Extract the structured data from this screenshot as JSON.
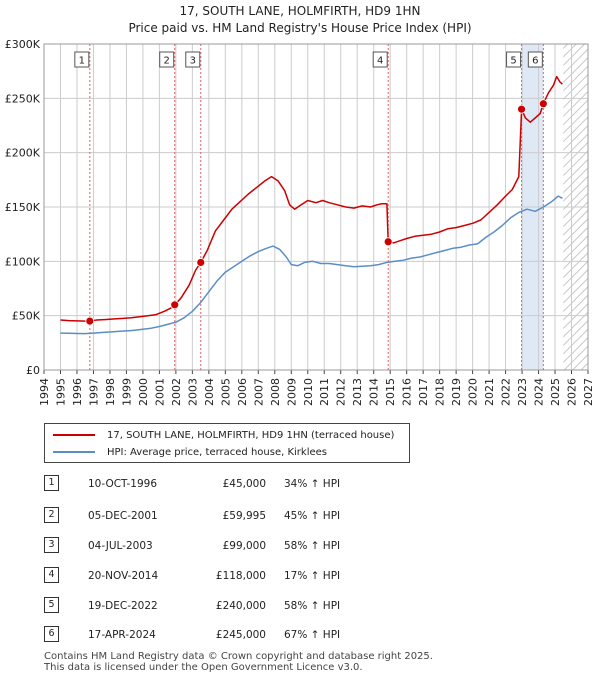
{
  "chart_data": {
    "type": "line",
    "title": "17, SOUTH LANE, HOLMFIRTH, HD9 1HN",
    "subtitle": "Price paid vs. HM Land Registry's House Price Index (HPI)",
    "xlabel": "",
    "ylabel": "",
    "xlim": [
      1994,
      2027
    ],
    "ylim": [
      0,
      300000
    ],
    "x_ticks": [
      "1994",
      "1995",
      "1996",
      "1997",
      "1998",
      "1999",
      "2000",
      "2001",
      "2002",
      "2003",
      "2004",
      "2005",
      "2006",
      "2007",
      "2008",
      "2009",
      "2010",
      "2011",
      "2012",
      "2013",
      "2014",
      "2015",
      "2016",
      "2017",
      "2018",
      "2019",
      "2020",
      "2021",
      "2022",
      "2023",
      "2024",
      "2025",
      "2026",
      "2027"
    ],
    "y_ticks": [
      {
        "value": 0,
        "label": "£0"
      },
      {
        "value": 50000,
        "label": "£50K"
      },
      {
        "value": 100000,
        "label": "£100K"
      },
      {
        "value": 150000,
        "label": "£150K"
      },
      {
        "value": 200000,
        "label": "£200K"
      },
      {
        "value": 250000,
        "label": "£250K"
      },
      {
        "value": 300000,
        "label": "£300K"
      }
    ],
    "grid": true,
    "data_end": 2025.5,
    "series": [
      {
        "name": "17, SOUTH LANE, HOLMFIRTH, HD9 1HN (terraced house)",
        "color": "#cc0000",
        "points": [
          [
            1995.0,
            46000
          ],
          [
            1995.5,
            45500
          ],
          [
            1996.0,
            45200
          ],
          [
            1996.5,
            45000
          ],
          [
            1996.78,
            45000
          ],
          [
            1997.2,
            46000
          ],
          [
            1997.8,
            46500
          ],
          [
            1998.3,
            47000
          ],
          [
            1998.8,
            47500
          ],
          [
            1999.3,
            48000
          ],
          [
            1999.8,
            49000
          ],
          [
            2000.3,
            50000
          ],
          [
            2000.8,
            51000
          ],
          [
            2001.3,
            54000
          ],
          [
            2001.7,
            57000
          ],
          [
            2001.93,
            59995
          ],
          [
            2002.3,
            66000
          ],
          [
            2002.8,
            78000
          ],
          [
            2003.2,
            92000
          ],
          [
            2003.51,
            99000
          ],
          [
            2003.9,
            110000
          ],
          [
            2004.4,
            128000
          ],
          [
            2004.9,
            138000
          ],
          [
            2005.4,
            148000
          ],
          [
            2005.9,
            155000
          ],
          [
            2006.4,
            162000
          ],
          [
            2006.9,
            168000
          ],
          [
            2007.4,
            174000
          ],
          [
            2007.8,
            178000
          ],
          [
            2008.2,
            174000
          ],
          [
            2008.6,
            165000
          ],
          [
            2008.9,
            152000
          ],
          [
            2009.2,
            148000
          ],
          [
            2009.6,
            152000
          ],
          [
            2010.0,
            156000
          ],
          [
            2010.5,
            154000
          ],
          [
            2010.9,
            156000
          ],
          [
            2011.3,
            154000
          ],
          [
            2011.8,
            152000
          ],
          [
            2012.3,
            150000
          ],
          [
            2012.8,
            149000
          ],
          [
            2013.3,
            151000
          ],
          [
            2013.8,
            150000
          ],
          [
            2014.2,
            152000
          ],
          [
            2014.5,
            153000
          ],
          [
            2014.8,
            153000
          ],
          [
            2014.88,
            118000
          ],
          [
            2015.2,
            117000
          ],
          [
            2015.6,
            119000
          ],
          [
            2016.0,
            121000
          ],
          [
            2016.5,
            123000
          ],
          [
            2017.0,
            124000
          ],
          [
            2017.5,
            125000
          ],
          [
            2018.0,
            127000
          ],
          [
            2018.5,
            130000
          ],
          [
            2019.0,
            131000
          ],
          [
            2019.5,
            133000
          ],
          [
            2020.0,
            135000
          ],
          [
            2020.5,
            138000
          ],
          [
            2021.0,
            145000
          ],
          [
            2021.5,
            152000
          ],
          [
            2022.0,
            160000
          ],
          [
            2022.4,
            166000
          ],
          [
            2022.8,
            178000
          ],
          [
            2022.97,
            240000
          ],
          [
            2023.2,
            232000
          ],
          [
            2023.5,
            228000
          ],
          [
            2023.8,
            232000
          ],
          [
            2024.1,
            236000
          ],
          [
            2024.29,
            245000
          ],
          [
            2024.6,
            255000
          ],
          [
            2024.9,
            262000
          ],
          [
            2025.1,
            270000
          ],
          [
            2025.3,
            265000
          ],
          [
            2025.45,
            263000
          ]
        ]
      },
      {
        "name": "HPI: Average price, terraced house, Kirklees",
        "color": "#5b8ec6",
        "points": [
          [
            1995.0,
            34000
          ],
          [
            1995.5,
            33800
          ],
          [
            1996.0,
            33600
          ],
          [
            1996.5,
            33500
          ],
          [
            1997.0,
            34000
          ],
          [
            1997.5,
            34500
          ],
          [
            1998.0,
            35000
          ],
          [
            1998.5,
            35500
          ],
          [
            1999.0,
            36000
          ],
          [
            1999.5,
            36500
          ],
          [
            2000.0,
            37500
          ],
          [
            2000.5,
            38500
          ],
          [
            2001.0,
            40000
          ],
          [
            2001.5,
            42000
          ],
          [
            2002.0,
            44000
          ],
          [
            2002.5,
            48000
          ],
          [
            2003.0,
            54000
          ],
          [
            2003.5,
            62000
          ],
          [
            2004.0,
            72000
          ],
          [
            2004.5,
            82000
          ],
          [
            2005.0,
            90000
          ],
          [
            2005.5,
            95000
          ],
          [
            2006.0,
            100000
          ],
          [
            2006.5,
            105000
          ],
          [
            2007.0,
            109000
          ],
          [
            2007.5,
            112000
          ],
          [
            2007.9,
            114000
          ],
          [
            2008.3,
            111000
          ],
          [
            2008.7,
            104000
          ],
          [
            2009.0,
            97000
          ],
          [
            2009.4,
            96000
          ],
          [
            2009.8,
            99000
          ],
          [
            2010.3,
            100000
          ],
          [
            2010.8,
            98000
          ],
          [
            2011.3,
            98000
          ],
          [
            2011.8,
            97000
          ],
          [
            2012.3,
            96000
          ],
          [
            2012.8,
            95000
          ],
          [
            2013.3,
            95500
          ],
          [
            2013.8,
            96000
          ],
          [
            2014.3,
            97000
          ],
          [
            2014.8,
            99000
          ],
          [
            2015.3,
            100000
          ],
          [
            2015.8,
            101000
          ],
          [
            2016.3,
            103000
          ],
          [
            2016.8,
            104000
          ],
          [
            2017.3,
            106000
          ],
          [
            2017.8,
            108000
          ],
          [
            2018.3,
            110000
          ],
          [
            2018.8,
            112000
          ],
          [
            2019.3,
            113000
          ],
          [
            2019.8,
            115000
          ],
          [
            2020.3,
            116000
          ],
          [
            2020.8,
            122000
          ],
          [
            2021.3,
            127000
          ],
          [
            2021.8,
            133000
          ],
          [
            2022.3,
            140000
          ],
          [
            2022.8,
            145000
          ],
          [
            2023.3,
            148000
          ],
          [
            2023.8,
            146000
          ],
          [
            2024.3,
            150000
          ],
          [
            2024.8,
            155000
          ],
          [
            2025.2,
            160000
          ],
          [
            2025.45,
            158000
          ]
        ]
      }
    ],
    "markers": [
      {
        "label": "1",
        "x": 1996.78,
        "y": 45000
      },
      {
        "label": "2",
        "x": 2001.93,
        "y": 59995
      },
      {
        "label": "3",
        "x": 2003.51,
        "y": 99000
      },
      {
        "label": "4",
        "x": 2014.88,
        "y": 118000
      },
      {
        "label": "5",
        "x": 2022.97,
        "y": 240000
      },
      {
        "label": "6",
        "x": 2024.29,
        "y": 245000
      }
    ]
  },
  "legend": {
    "property": "17, SOUTH LANE, HOLMFIRTH, HD9 1HN (terraced house)",
    "hpi": "HPI: Average price, terraced house, Kirklees"
  },
  "sales": [
    {
      "num": "1",
      "date": "10-OCT-1996",
      "price": "£45,000",
      "hpi": "34% ↑ HPI"
    },
    {
      "num": "2",
      "date": "05-DEC-2001",
      "price": "£59,995",
      "hpi": "45% ↑ HPI"
    },
    {
      "num": "3",
      "date": "04-JUL-2003",
      "price": "£99,000",
      "hpi": "58% ↑ HPI"
    },
    {
      "num": "4",
      "date": "20-NOV-2014",
      "price": "£118,000",
      "hpi": "17% ↑ HPI"
    },
    {
      "num": "5",
      "date": "19-DEC-2022",
      "price": "£240,000",
      "hpi": "58% ↑ HPI"
    },
    {
      "num": "6",
      "date": "17-APR-2024",
      "price": "£245,000",
      "hpi": "67% ↑ HPI"
    }
  ],
  "footer": {
    "line1": "Contains HM Land Registry data © Crown copyright and database right 2025.",
    "line2": "This data is licensed under the Open Government Licence v3.0."
  },
  "colors": {
    "property_line": "#cc0000",
    "hpi_line": "#5b8ec6",
    "shade": "#dfe8f5",
    "grid": "#cccccc",
    "plot_bg": "#ffffff"
  }
}
